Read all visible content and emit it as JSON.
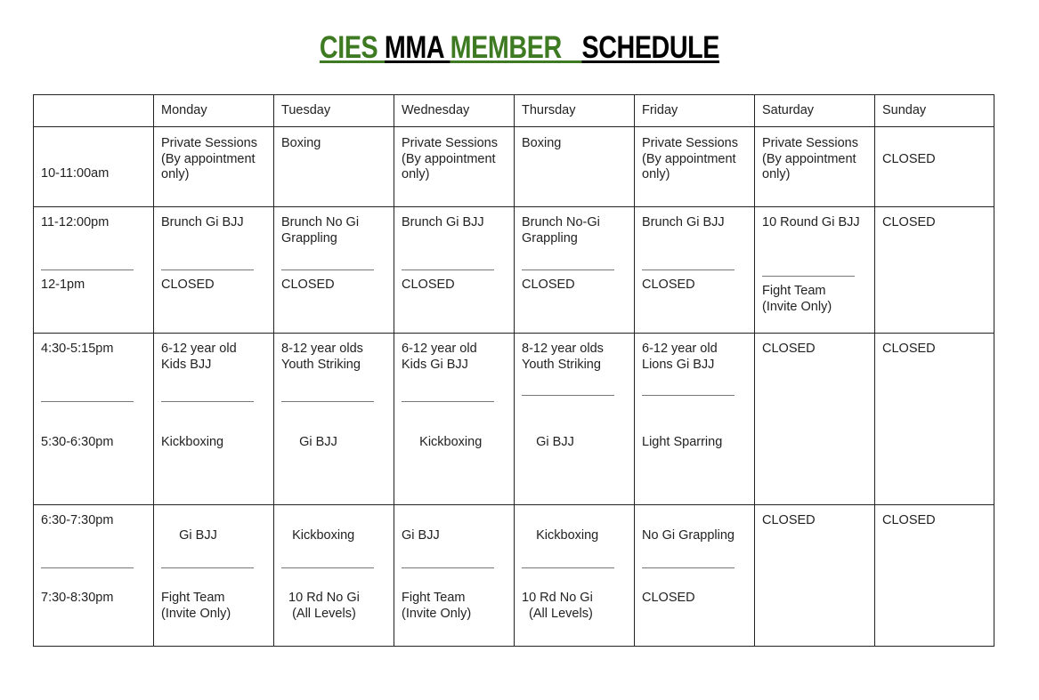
{
  "title": {
    "parts": [
      {
        "text": "CIES ",
        "color": "#3d7a21"
      },
      {
        "text": "MMA ",
        "color": "#000000"
      },
      {
        "text": "MEMBER   ",
        "color": "#3d7a21"
      },
      {
        "text": "SCHEDULE",
        "color": "#000000"
      }
    ]
  },
  "header": [
    "",
    "Monday",
    "Tuesday",
    "Wednesday",
    "Thursday",
    "Friday",
    "Saturday",
    "Sunday"
  ],
  "rows": [
    {
      "time": {
        "top": "",
        "bottom": "10-11:00am"
      },
      "cells": [
        {
          "top": "Private Sessions\n(By appointment\nonly)"
        },
        {
          "top": "Boxing"
        },
        {
          "top": "Private Sessions\n(By appointment\nonly)"
        },
        {
          "top": "Boxing"
        },
        {
          "top": "Private Sessions\n(By appointment\nonly)"
        },
        {
          "top": "Private Sessions\n(By appointment\nonly)"
        },
        {
          "top": "\nCLOSED"
        }
      ]
    },
    {
      "time": {
        "top": "11-12:00pm",
        "bottom": "12-1pm"
      },
      "cells": [
        {
          "top": "Brunch Gi BJJ",
          "bottom": "CLOSED"
        },
        {
          "top": "Brunch No Gi\nGrappling",
          "bottom": "CLOSED"
        },
        {
          "top": "Brunch Gi BJJ",
          "bottom": "CLOSED"
        },
        {
          "top": "Brunch No-Gi\nGrappling",
          "bottom": "CLOSED"
        },
        {
          "top": "Brunch Gi BJJ",
          "bottom": "CLOSED"
        },
        {
          "top": "10 Round Gi BJJ",
          "bottom": "Fight Team\n(Invite Only)",
          "alt": true
        },
        {
          "top": "CLOSED"
        }
      ]
    },
    {
      "time": {
        "top": "4:30-5:15pm",
        "bottom": "5:30-6:30pm"
      },
      "cells": [
        {
          "top": "6-12 year old\nKids BJJ",
          "bottom": "Kickboxing"
        },
        {
          "top": "8-12 year olds\nYouth Striking",
          "bottom": "     Gi BJJ"
        },
        {
          "top": "6-12 year old\nKids Gi BJJ",
          "bottom": "     Kickboxing"
        },
        {
          "top": "8-12 year olds\nYouth Striking",
          "bottom": "    Gi BJJ",
          "alt": true
        },
        {
          "top": "6-12 year old\nLions Gi BJJ",
          "bottom": "Light Sparring",
          "alt": true
        },
        {
          "top": "CLOSED"
        },
        {
          "top": "CLOSED"
        }
      ]
    },
    {
      "time": {
        "top": "6:30-7:30pm",
        "bottom": "7:30-8:30pm"
      },
      "cells": [
        {
          "top": "     Gi BJJ",
          "bottom": "Fight Team\n(Invite Only)",
          "low": true
        },
        {
          "top": "   Kickboxing",
          "bottom": "  10 Rd No Gi\n   (All Levels)",
          "low": true
        },
        {
          "top": "Gi BJJ",
          "bottom": "Fight Team\n(Invite Only)",
          "low": true
        },
        {
          "top": "    Kickboxing",
          "bottom": "10 Rd No Gi\n  (All Levels)",
          "low": true
        },
        {
          "top": "No Gi Grappling",
          "bottom": "CLOSED",
          "low": true
        },
        {
          "top": "CLOSED"
        },
        {
          "top": "CLOSED"
        }
      ]
    }
  ]
}
